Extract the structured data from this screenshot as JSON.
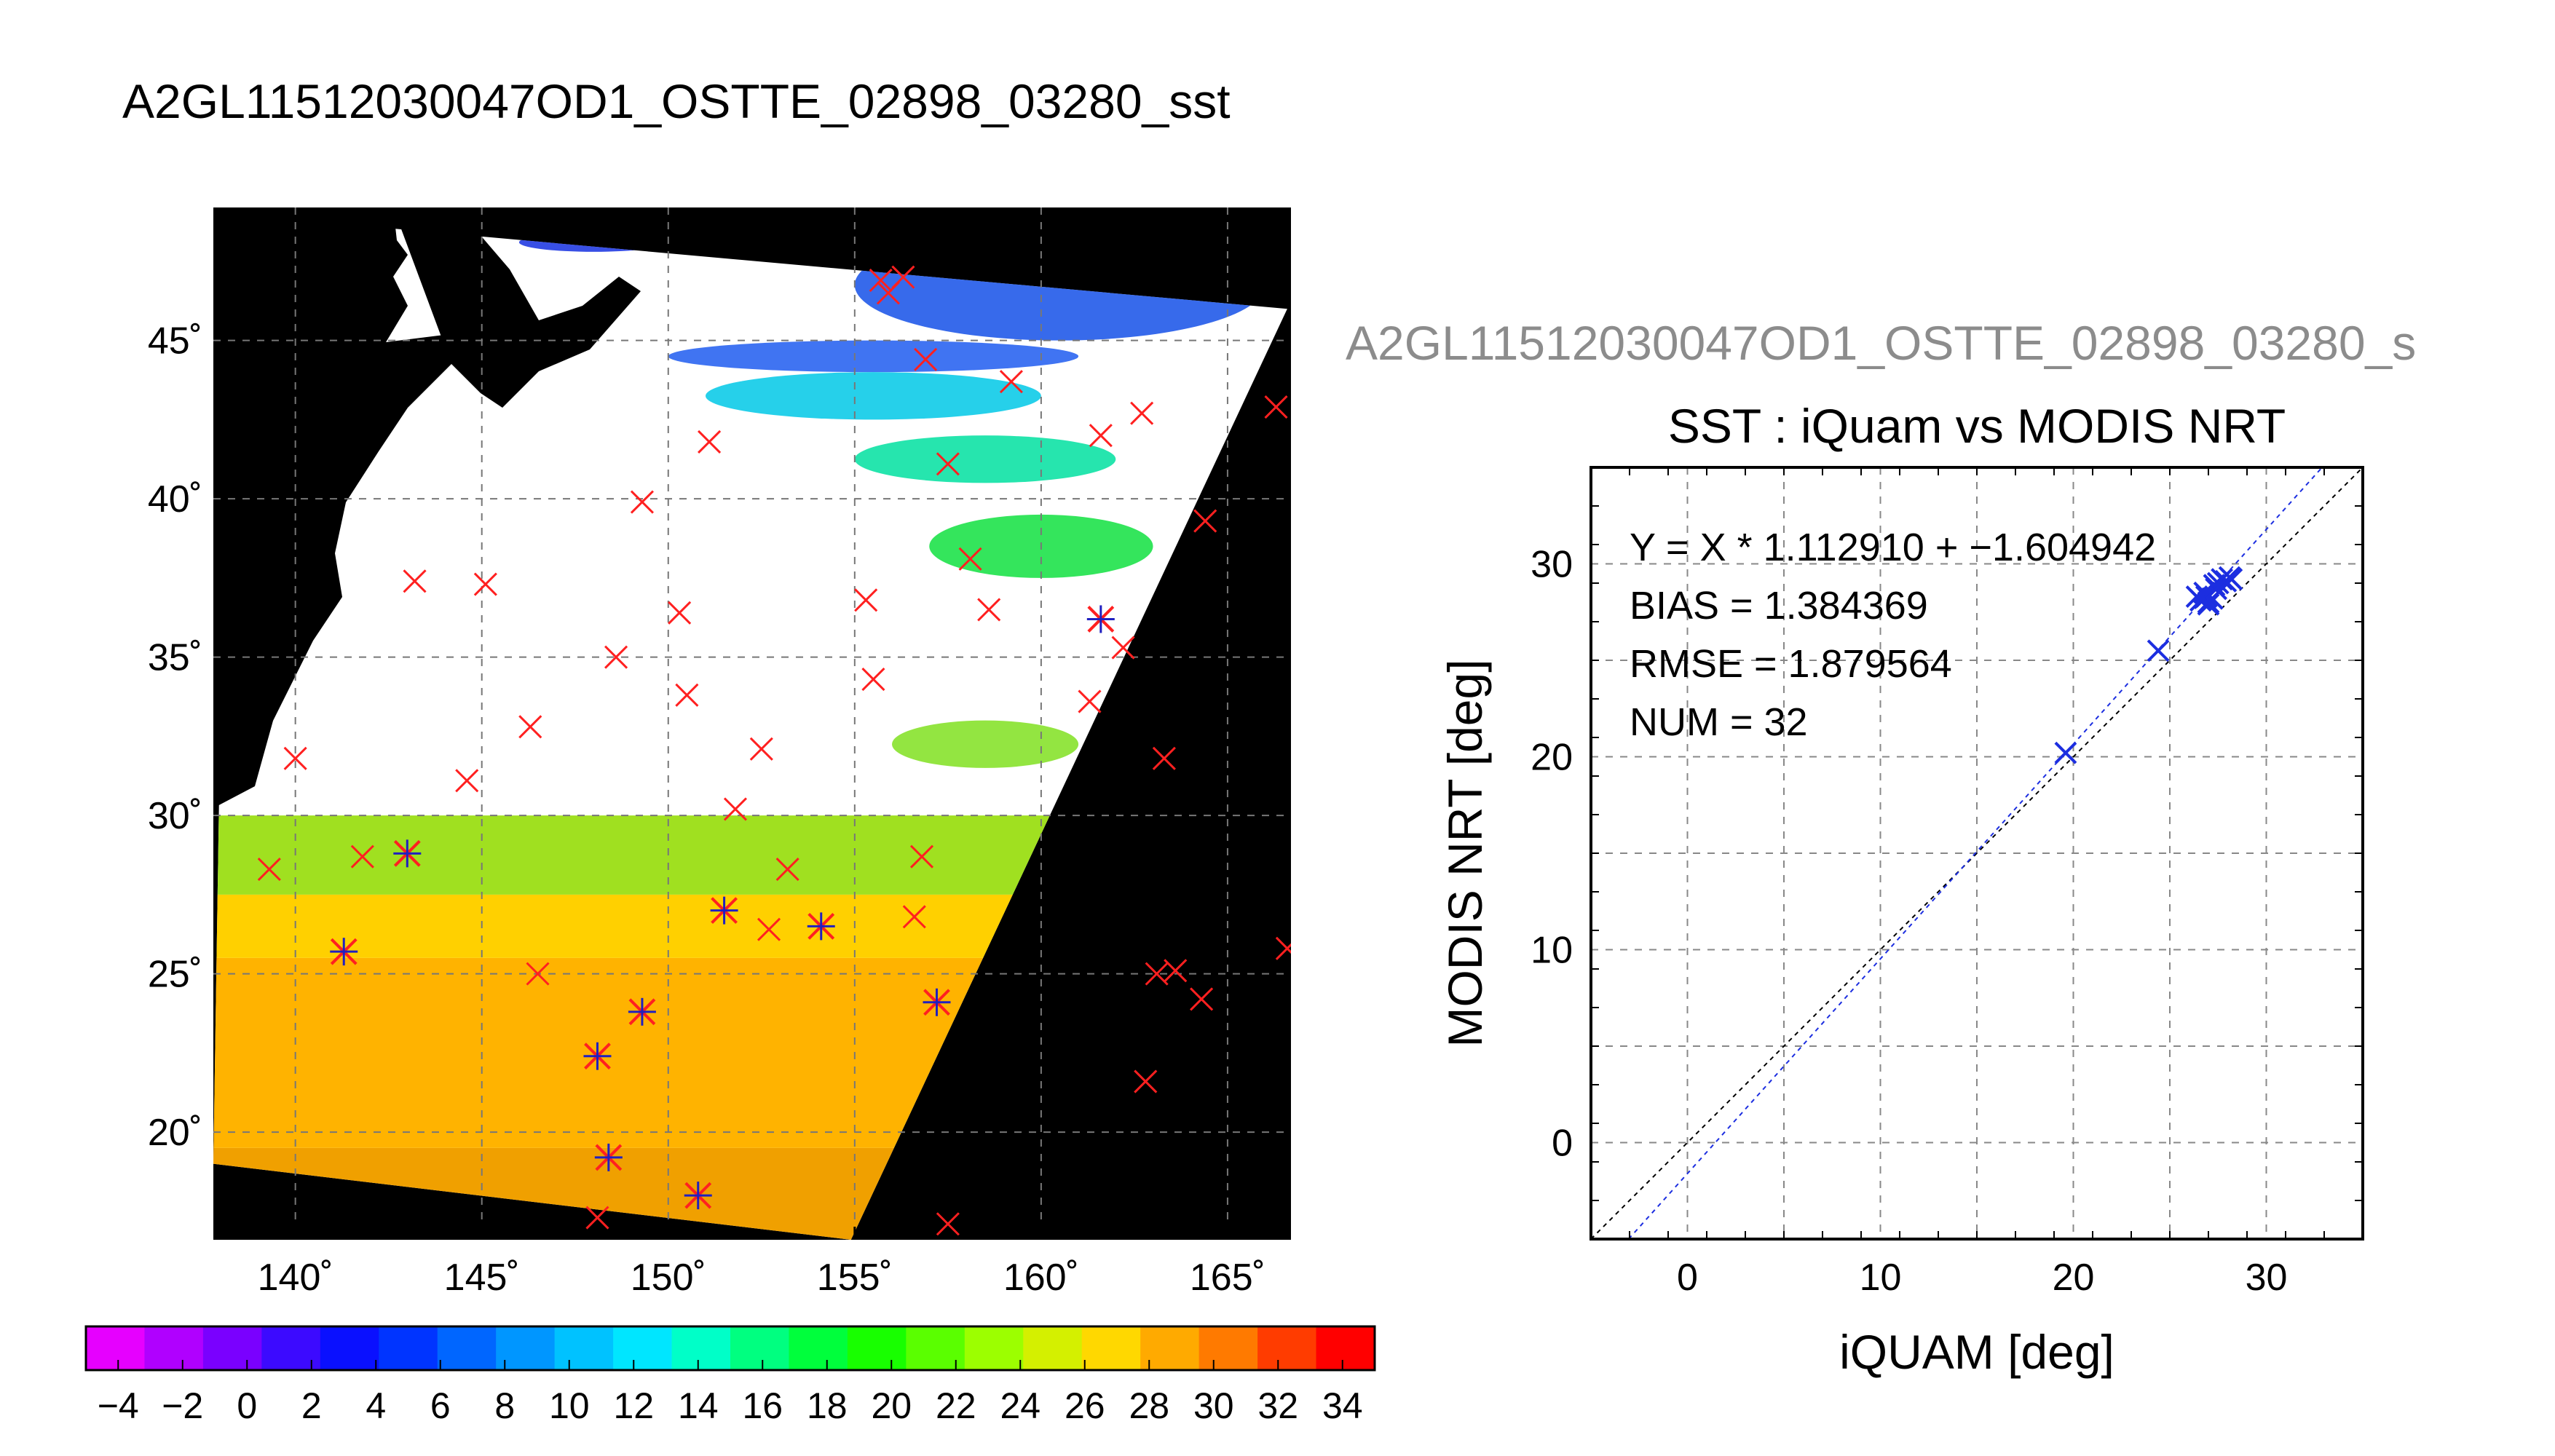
{
  "page_title": "A2GL11512030047OD1_OSTTE_02898_03280_sst",
  "chart_data": [
    {
      "type": "map",
      "title": "A2GL11512030047OD1_OSTTE_02898_03280_sst",
      "x_ticks": [
        "140˚",
        "145˚",
        "150˚",
        "155˚",
        "160˚",
        "165˚"
      ],
      "x_tick_values": [
        140,
        145,
        150,
        155,
        160,
        165
      ],
      "y_ticks": [
        "20˚",
        "25˚",
        "30˚",
        "35˚",
        "40˚",
        "45˚"
      ],
      "y_tick_values": [
        20,
        25,
        30,
        35,
        40,
        45
      ],
      "xlim": [
        137.8,
        166.7
      ],
      "ylim": [
        16.6,
        49.2
      ],
      "grid": true,
      "swath_corners": [
        [
          138.2,
          49.0
        ],
        [
          166.6,
          46.0
        ],
        [
          154.9,
          16.6
        ],
        [
          137.8,
          19.0
        ]
      ],
      "sst_zones": [
        {
          "lat_range": [
            16.6,
            19.5
          ],
          "value": 30,
          "color": "#f0a000"
        },
        {
          "lat_range": [
            19.5,
            25.5
          ],
          "value": 28.5,
          "color": "#ffb300"
        },
        {
          "lat_range": [
            25.5,
            27.5
          ],
          "value": 27,
          "color": "#ffd000"
        },
        {
          "lat_range": [
            27.5,
            30.0
          ],
          "value": 24,
          "color": "#a0e020"
        }
      ],
      "cloud_free_patches": [
        {
          "lon": [
            150.0,
            161.0
          ],
          "lat": [
            44.0,
            45.0
          ],
          "value": 6,
          "color": "#1e5cf0"
        },
        {
          "lon": [
            155.0,
            166.0
          ],
          "lat": [
            45.0,
            48.5
          ],
          "value": 5,
          "color": "#1450e8"
        },
        {
          "lon": [
            151.0,
            160.0
          ],
          "lat": [
            42.5,
            44.0
          ],
          "value": 10,
          "color": "#00c8e6"
        },
        {
          "lon": [
            155.0,
            162.0
          ],
          "lat": [
            40.5,
            42.0
          ],
          "value": 15,
          "color": "#00e0a0"
        },
        {
          "lon": [
            157.0,
            163.0
          ],
          "lat": [
            37.5,
            39.5
          ],
          "value": 18,
          "color": "#10e040"
        },
        {
          "lon": [
            156.0,
            161.0
          ],
          "lat": [
            31.5,
            33.0
          ],
          "value": 22,
          "color": "#80e020"
        },
        {
          "lon": [
            146.0,
            150.0
          ],
          "lat": [
            47.8,
            48.4
          ],
          "value": 4,
          "color": "#1530e0"
        }
      ],
      "matchups_not_used": [
        [
          139.3,
          28.3
        ],
        [
          140.0,
          31.8
        ],
        [
          141.8,
          28.7
        ],
        [
          143.2,
          37.4
        ],
        [
          144.6,
          31.1
        ],
        [
          145.1,
          37.3
        ],
        [
          146.3,
          32.8
        ],
        [
          146.5,
          25.0
        ],
        [
          148.1,
          17.3
        ],
        [
          148.6,
          35.0
        ],
        [
          149.3,
          39.9
        ],
        [
          150.3,
          36.4
        ],
        [
          150.5,
          33.8
        ],
        [
          151.1,
          41.8
        ],
        [
          151.8,
          30.2
        ],
        [
          152.5,
          32.1
        ],
        [
          152.7,
          26.4
        ],
        [
          153.2,
          28.3
        ],
        [
          155.3,
          36.8
        ],
        [
          155.5,
          34.3
        ],
        [
          155.7,
          46.9
        ],
        [
          155.9,
          46.5
        ],
        [
          156.3,
          47.0
        ],
        [
          156.6,
          26.8
        ],
        [
          156.8,
          28.7
        ],
        [
          156.9,
          44.4
        ],
        [
          157.5,
          17.1
        ],
        [
          157.5,
          41.1
        ],
        [
          158.1,
          38.1
        ],
        [
          158.6,
          36.5
        ],
        [
          159.2,
          43.7
        ],
        [
          161.3,
          33.6
        ],
        [
          161.6,
          42.0
        ],
        [
          162.2,
          35.3
        ],
        [
          162.7,
          42.7
        ],
        [
          162.8,
          21.6
        ],
        [
          163.1,
          25.0
        ],
        [
          163.3,
          31.8
        ],
        [
          163.6,
          25.1
        ],
        [
          164.3,
          24.2
        ],
        [
          164.4,
          39.3
        ],
        [
          166.3,
          42.9
        ],
        [
          166.6,
          25.8
        ]
      ],
      "matchups_used": [
        [
          141.3,
          25.7
        ],
        [
          143.0,
          28.8
        ],
        [
          148.1,
          22.4
        ],
        [
          148.4,
          19.2
        ],
        [
          149.3,
          23.8
        ],
        [
          150.8,
          18.0
        ],
        [
          151.5,
          27.0
        ],
        [
          154.1,
          26.5
        ],
        [
          157.2,
          24.1
        ],
        [
          161.6,
          36.2
        ]
      ],
      "colorbar": {
        "labels": [
          "−4",
          "−2",
          "0",
          "2",
          "4",
          "6",
          "8",
          "10",
          "12",
          "14",
          "16",
          "18",
          "20",
          "22",
          "24",
          "26",
          "28",
          "30",
          "32",
          "34"
        ],
        "min": -5,
        "max": 35,
        "step": 2,
        "colors": [
          "#e600ff",
          "#b000ff",
          "#7a00ff",
          "#3c0aff",
          "#0a10ff",
          "#0034ff",
          "#0066ff",
          "#0096ff",
          "#00c2ff",
          "#00e6ff",
          "#00ffc8",
          "#00ff80",
          "#00ff3c",
          "#18ff00",
          "#5aff00",
          "#9cff00",
          "#d4f000",
          "#ffd800",
          "#ffaa00",
          "#ff7a00",
          "#ff3c00",
          "#ff0000"
        ]
      }
    },
    {
      "type": "scatter",
      "title": "SST : iQuam vs MODIS NRT",
      "subtitle": "A2GL11512030047OD1_OSTTE_02898_03280_s",
      "xlabel": "iQUAM [deg]",
      "ylabel": "MODIS NRT [deg]",
      "xlim": [
        -5,
        35
      ],
      "ylim": [
        -5,
        35
      ],
      "x_ticks": [
        "0",
        "10",
        "20",
        "30"
      ],
      "x_tick_values": [
        0,
        10,
        20,
        30
      ],
      "y_ticks": [
        "0",
        "10",
        "20",
        "30"
      ],
      "y_tick_values": [
        0,
        10,
        20,
        30
      ],
      "grid": true,
      "stats": [
        "Y = X * 1.112910 + −1.604942",
        "BIAS = 1.384369",
        "RMSE = 1.879564",
        "NUM = 32"
      ],
      "fit": {
        "slope": 1.11291,
        "intercept": -1.604942
      },
      "points": [
        [
          19.6,
          20.2
        ],
        [
          24.4,
          25.5
        ],
        [
          26.4,
          28.3
        ],
        [
          26.6,
          28.1
        ],
        [
          26.9,
          28.3
        ],
        [
          27.0,
          28.0
        ],
        [
          27.2,
          28.2
        ],
        [
          27.3,
          28.9
        ],
        [
          27.5,
          29.0
        ],
        [
          27.7,
          29.2
        ],
        [
          27.9,
          29.1
        ],
        [
          28.1,
          29.3
        ],
        [
          28.2,
          29.2
        ],
        [
          27.0,
          27.9
        ],
        [
          26.8,
          28.5
        ],
        [
          27.4,
          28.7
        ]
      ]
    }
  ]
}
